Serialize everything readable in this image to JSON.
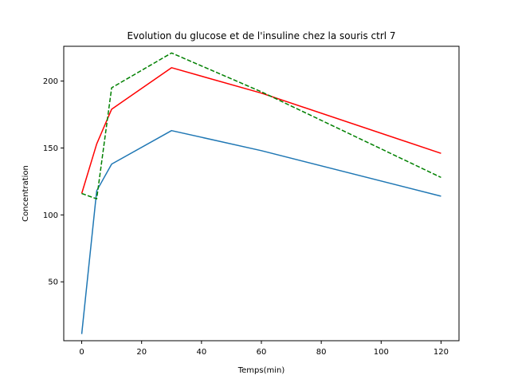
{
  "chart_data": {
    "type": "line",
    "title": "Evolution  du glucose et de l'insuline chez la souris ctrl 7",
    "xlabel": "Temps(min)",
    "ylabel": "Concentration",
    "xlim": [
      -6,
      126
    ],
    "ylim": [
      6,
      226
    ],
    "xticks": [
      0,
      20,
      40,
      60,
      80,
      100,
      120
    ],
    "yticks": [
      50,
      100,
      150,
      200
    ],
    "grid": false,
    "series": [
      {
        "color": "#1f77b4",
        "style": "solid",
        "x": [
          0,
          5,
          10,
          30,
          60,
          120
        ],
        "y": [
          11,
          118,
          138,
          163,
          148,
          114
        ]
      },
      {
        "color": "#ff0000",
        "style": "solid",
        "x": [
          0,
          5,
          10,
          30,
          60,
          120
        ],
        "y": [
          116,
          153,
          179,
          210,
          191,
          146
        ]
      },
      {
        "color": "#008000",
        "style": "dashed",
        "x": [
          0,
          5,
          10,
          30,
          60,
          120
        ],
        "y": [
          116,
          112,
          195,
          221,
          192,
          128
        ]
      }
    ]
  }
}
